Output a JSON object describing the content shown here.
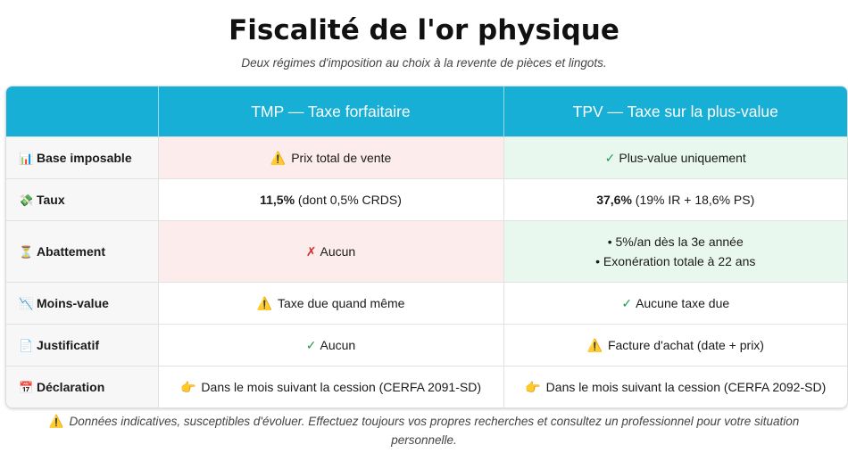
{
  "title": "Fiscalité de l'or physique",
  "subtitle": "Deux régimes d'imposition au choix à la revente de pièces et lingots.",
  "table": {
    "headers": [
      "",
      "TMP — Taxe forfaitaire",
      "TPV — Taxe sur la plus-value"
    ],
    "rows": [
      {
        "icon": "📊",
        "icon_name": "bar-chart-icon",
        "label": "Base imposable",
        "tmp": {
          "mark": "⚠️",
          "text": "Prix total de vente"
        },
        "tpv": {
          "mark": "✓",
          "text": "Plus-value uniquement"
        }
      },
      {
        "icon": "💸",
        "icon_name": "money-wings-icon",
        "label": "Taux",
        "tmp": {
          "bold": "11,5%",
          "text": " (dont 0,5% CRDS)"
        },
        "tpv": {
          "bold": "37,6%",
          "text": " (19% IR + 18,6% PS)"
        }
      },
      {
        "icon": "⏳",
        "icon_name": "hourglass-icon",
        "label": "Abattement",
        "tmp": {
          "mark": "✗",
          "text": "Aucun"
        },
        "tpv": {
          "bullets": [
            "• 5%/an dès la 3e année",
            "• Exonération totale à 22 ans"
          ]
        }
      },
      {
        "icon": "📉",
        "icon_name": "chart-down-icon",
        "label": "Moins-value",
        "tmp": {
          "mark": "⚠️",
          "text": "Taxe due quand même"
        },
        "tpv": {
          "mark": "✓",
          "text": "Aucune taxe due"
        }
      },
      {
        "icon": "📄",
        "icon_name": "document-icon",
        "label": "Justificatif",
        "tmp": {
          "mark": "✓",
          "text": "Aucun"
        },
        "tpv": {
          "mark": "⚠️",
          "text": "Facture d'achat (date + prix)"
        }
      },
      {
        "icon": "📅",
        "icon_name": "calendar-icon",
        "label": "Déclaration",
        "tmp": {
          "mark": "👉",
          "text": "Dans le mois suivant la cession (CERFA 2091-SD)"
        },
        "tpv": {
          "mark": "👉",
          "text": "Dans le mois suivant la cession (CERFA 2092-SD)"
        }
      }
    ]
  },
  "footnote": {
    "mark": "⚠️",
    "text": "Données indicatives, susceptibles d'évoluer. Effectuez toujours vos propres recherches et consultez un professionnel pour votre situation personnelle."
  }
}
